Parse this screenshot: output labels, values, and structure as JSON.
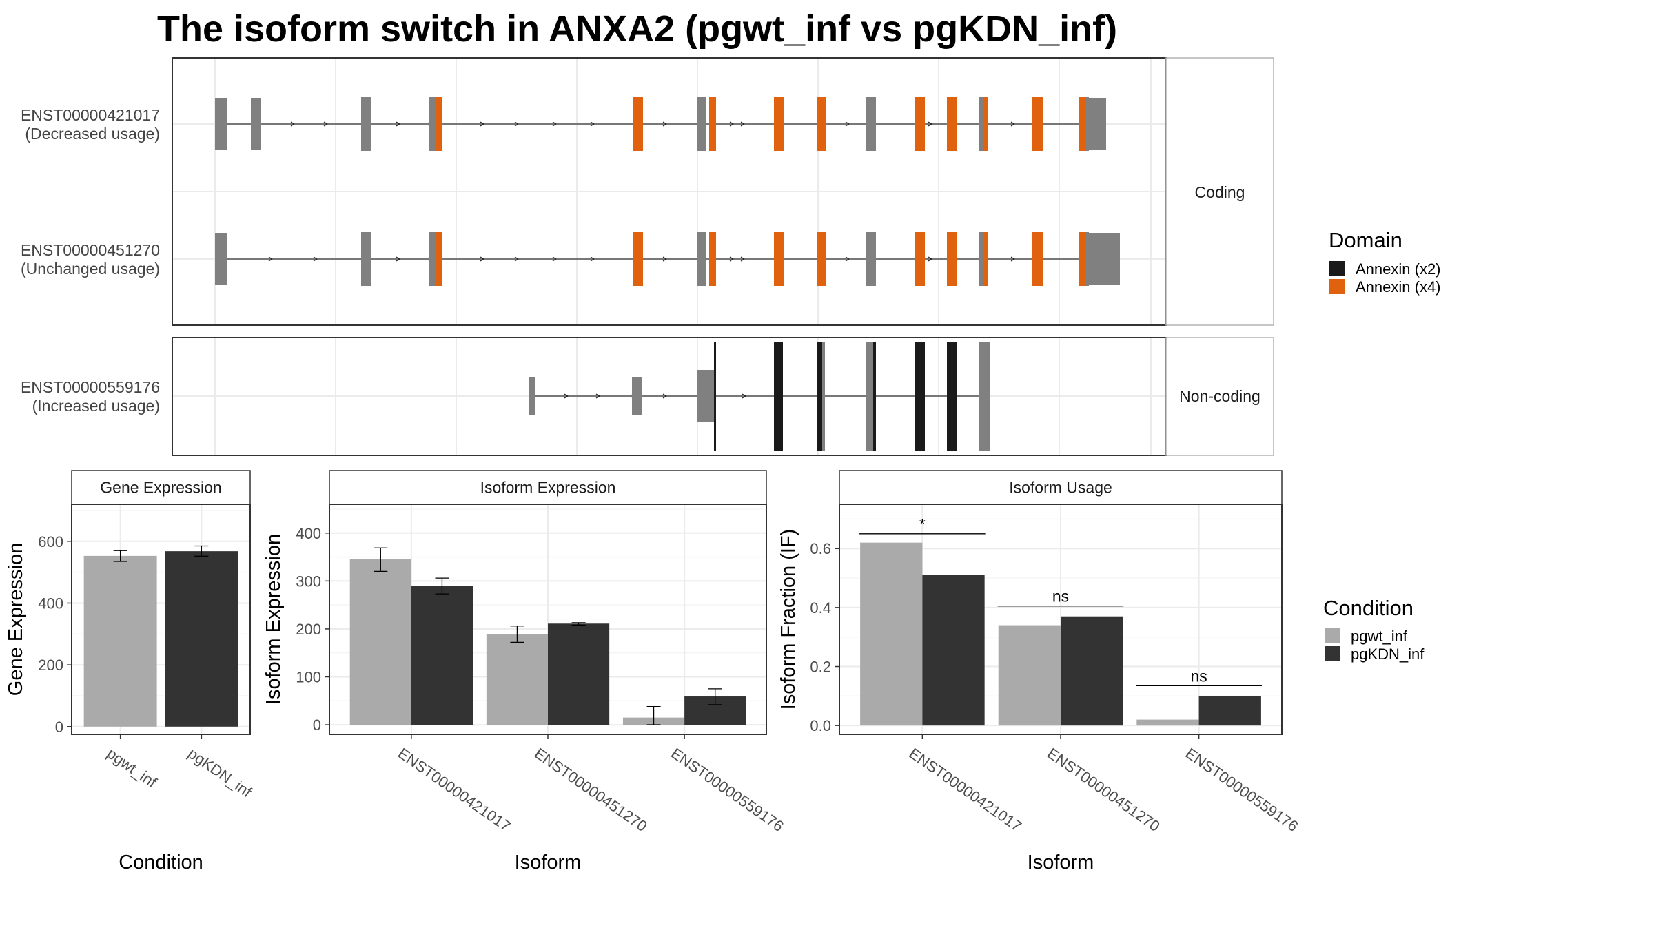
{
  "title": "The isoform switch in ANXA2 (pgwt_inf vs pgKDN_inf)",
  "colors": {
    "exon": "#808080",
    "annexin_x2": "#1a1a1a",
    "annexin_x4": "#e0620e",
    "pgwt_inf": "#aaaaaa",
    "pgKDN_inf": "#333333",
    "grid_major": "#ebebeb",
    "grid_minor": "#f5f5f5",
    "panel_border": "#333333",
    "strip_border": "#b3b3b3"
  },
  "structure": {
    "coding_strip": "Coding",
    "noncoding_strip": "Non-coding",
    "transcripts": [
      {
        "id": "ENST00000421017",
        "usage": "(Decreased usage)",
        "group": "coding"
      },
      {
        "id": "ENST00000451270",
        "usage": "(Unchanged usage)",
        "group": "coding"
      },
      {
        "id": "ENST00000559176",
        "usage": "(Increased usage)",
        "group": "noncoding"
      }
    ]
  },
  "legend_domain": {
    "title": "Domain",
    "items": [
      {
        "label": "Annexin (x2)",
        "color": "#1a1a1a"
      },
      {
        "label": "Annexin (x4)",
        "color": "#e0620e"
      }
    ]
  },
  "legend_condition": {
    "title": "Condition",
    "items": [
      {
        "label": "pgwt_inf",
        "color": "#aaaaaa"
      },
      {
        "label": "pgKDN_inf",
        "color": "#333333"
      }
    ]
  },
  "chart_data": [
    {
      "type": "bar",
      "title": "Gene Expression",
      "xlabel": "Condition",
      "ylabel": "Gene Expression",
      "categories": [
        "pgwt_inf",
        "pgKDN_inf"
      ],
      "values": [
        553,
        568
      ],
      "errors": [
        [
          535,
          570
        ],
        [
          552,
          585
        ]
      ],
      "ylim": [
        -25,
        720
      ],
      "yticks": [
        0,
        200,
        400,
        600
      ]
    },
    {
      "type": "bar",
      "title": "Isoform Expression",
      "xlabel": "Isoform",
      "ylabel": "Isoform Expression",
      "categories": [
        "ENST00000421017",
        "ENST00000451270",
        "ENST00000559176"
      ],
      "series": [
        {
          "name": "pgwt_inf",
          "values": [
            345,
            189,
            15
          ],
          "errors": [
            [
              320,
              369
            ],
            [
              172,
              206
            ],
            [
              0,
              38
            ]
          ]
        },
        {
          "name": "pgKDN_inf",
          "values": [
            290,
            211,
            59
          ],
          "errors": [
            [
              273,
              306
            ],
            [
              208,
              213
            ],
            [
              42,
              75
            ]
          ]
        }
      ],
      "ylim": [
        -20,
        460
      ],
      "yticks": [
        0,
        100,
        200,
        300,
        400
      ]
    },
    {
      "type": "bar",
      "title": "Isoform Usage",
      "xlabel": "Isoform",
      "ylabel": "Isoform Fraction (IF)",
      "categories": [
        "ENST00000421017",
        "ENST00000451270",
        "ENST00000559176"
      ],
      "series": [
        {
          "name": "pgwt_inf",
          "values": [
            0.62,
            0.34,
            0.02
          ]
        },
        {
          "name": "pgKDN_inf",
          "values": [
            0.51,
            0.37,
            0.1
          ]
        }
      ],
      "significance": [
        "*",
        "ns",
        "ns"
      ],
      "sig_heights": [
        0.65,
        0.405,
        0.135
      ],
      "ylim": [
        -0.03,
        0.75
      ],
      "yticks": [
        "0.0",
        "0.2",
        "0.4",
        "0.6"
      ]
    }
  ]
}
